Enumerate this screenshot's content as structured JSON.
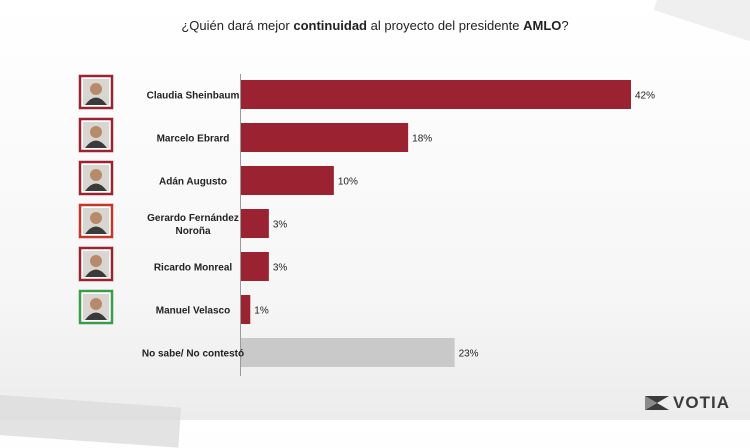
{
  "title": {
    "prefix": "¿Quién dará mejor ",
    "bold1": "continuidad",
    "middle": " al proyecto del presidente ",
    "bold2": "AMLO",
    "suffix": "?"
  },
  "chart_data": {
    "type": "bar",
    "orientation": "horizontal",
    "categories": [
      "Claudia Sheinbaum",
      "Marcelo Ebrard",
      "Adán Augusto",
      "Gerardo Fernández Noroña",
      "Ricardo Monreal",
      "Manuel Velasco",
      "No sabe/ No contestó"
    ],
    "values": [
      42,
      18,
      10,
      3,
      3,
      1,
      23
    ],
    "value_labels": [
      "42%",
      "18%",
      "10%",
      "3%",
      "3%",
      "1%",
      "23%"
    ],
    "bar_colors": [
      "#9b2331",
      "#9b2331",
      "#9b2331",
      "#9b2331",
      "#9b2331",
      "#9b2331",
      "#c9c9c9"
    ],
    "photo_frame_colors": [
      "#9b2331",
      "#9b2331",
      "#9b2331",
      "#c0392b",
      "#9b2331",
      "#3a9d4b",
      null
    ],
    "xlim": [
      0,
      42
    ],
    "grid": false
  },
  "brand": {
    "logo_text": "VOTIA"
  }
}
